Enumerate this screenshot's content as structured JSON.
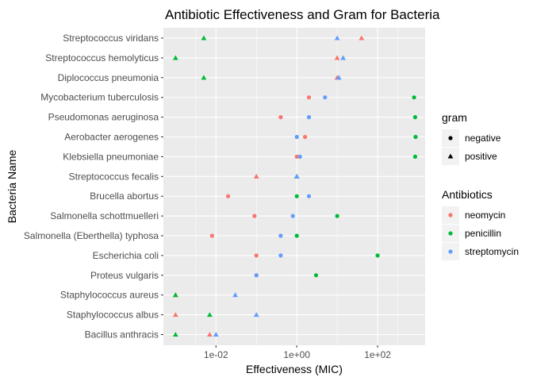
{
  "chart_data": {
    "type": "scatter",
    "title": "Antibiotic Effectiveness and Gram for Bacteria",
    "xlabel": "Effectiveness (MIC)",
    "ylabel": "Bacteria Name",
    "x_scale": "log10",
    "x_ticks": [
      0.01,
      1,
      100
    ],
    "x_tick_labels": [
      "1e-02",
      "1e+00",
      "1e+02"
    ],
    "xlim": [
      0.0005,
      1500
    ],
    "grid": true,
    "categories": [
      "Streptococcus viridans",
      "Streptococcus hemolyticus",
      "Diplococcus pneumonia",
      "Mycobacterium tuberculosis",
      "Pseudomonas aeruginosa",
      "Aerobacter aerogenes",
      "Klebsiella pneumoniae",
      "Streptococcus fecalis",
      "Brucella abortus",
      "Salmonella schottmuelleri",
      "Salmonella (Eberthella) typhosa",
      "Escherichia coli",
      "Proteus vulgaris",
      "Staphylococcus aureus",
      "Staphylococcus albus",
      "Bacillus anthracis"
    ],
    "gram": {
      "Streptococcus viridans": "positive",
      "Streptococcus hemolyticus": "positive",
      "Diplococcus pneumonia": "positive",
      "Mycobacterium tuberculosis": "negative",
      "Pseudomonas aeruginosa": "negative",
      "Aerobacter aerogenes": "negative",
      "Klebsiella pneumoniae": "negative",
      "Streptococcus fecalis": "positive",
      "Brucella abortus": "negative",
      "Salmonella schottmuelleri": "negative",
      "Salmonella (Eberthella) typhosa": "negative",
      "Escherichia coli": "negative",
      "Proteus vulgaris": "negative",
      "Staphylococcus aureus": "positive",
      "Staphylococcus albus": "positive",
      "Bacillus anthracis": "positive"
    },
    "series": [
      {
        "name": "neomycin",
        "color": "#F8766D",
        "values": [
          40,
          10,
          10,
          2,
          0.4,
          1.6,
          1,
          0.1,
          0.02,
          0.09,
          0.008,
          0.1,
          0.1,
          0.001,
          0.001,
          0.007
        ]
      },
      {
        "name": "penicillin",
        "color": "#00BA38",
        "values": [
          0.005,
          0.001,
          0.005,
          800,
          850,
          870,
          850,
          1,
          1,
          10,
          1,
          100,
          3,
          0.001,
          0.007,
          0.001
        ]
      },
      {
        "name": "streptomycin",
        "color": "#619CFF",
        "values": [
          10,
          14,
          11,
          5,
          2,
          1,
          1.2,
          1,
          2,
          0.8,
          0.4,
          0.4,
          0.1,
          0.03,
          0.1,
          0.01
        ]
      }
    ],
    "legend": {
      "position": "right",
      "gram_title": "gram",
      "gram_items": [
        {
          "label": "negative",
          "shape": "circle"
        },
        {
          "label": "positive",
          "shape": "triangle"
        }
      ],
      "color_title": "Antibiotics",
      "color_items": [
        {
          "label": "neomycin",
          "color": "#F8766D"
        },
        {
          "label": "penicillin",
          "color": "#00BA38"
        },
        {
          "label": "streptomycin",
          "color": "#619CFF"
        }
      ]
    }
  }
}
